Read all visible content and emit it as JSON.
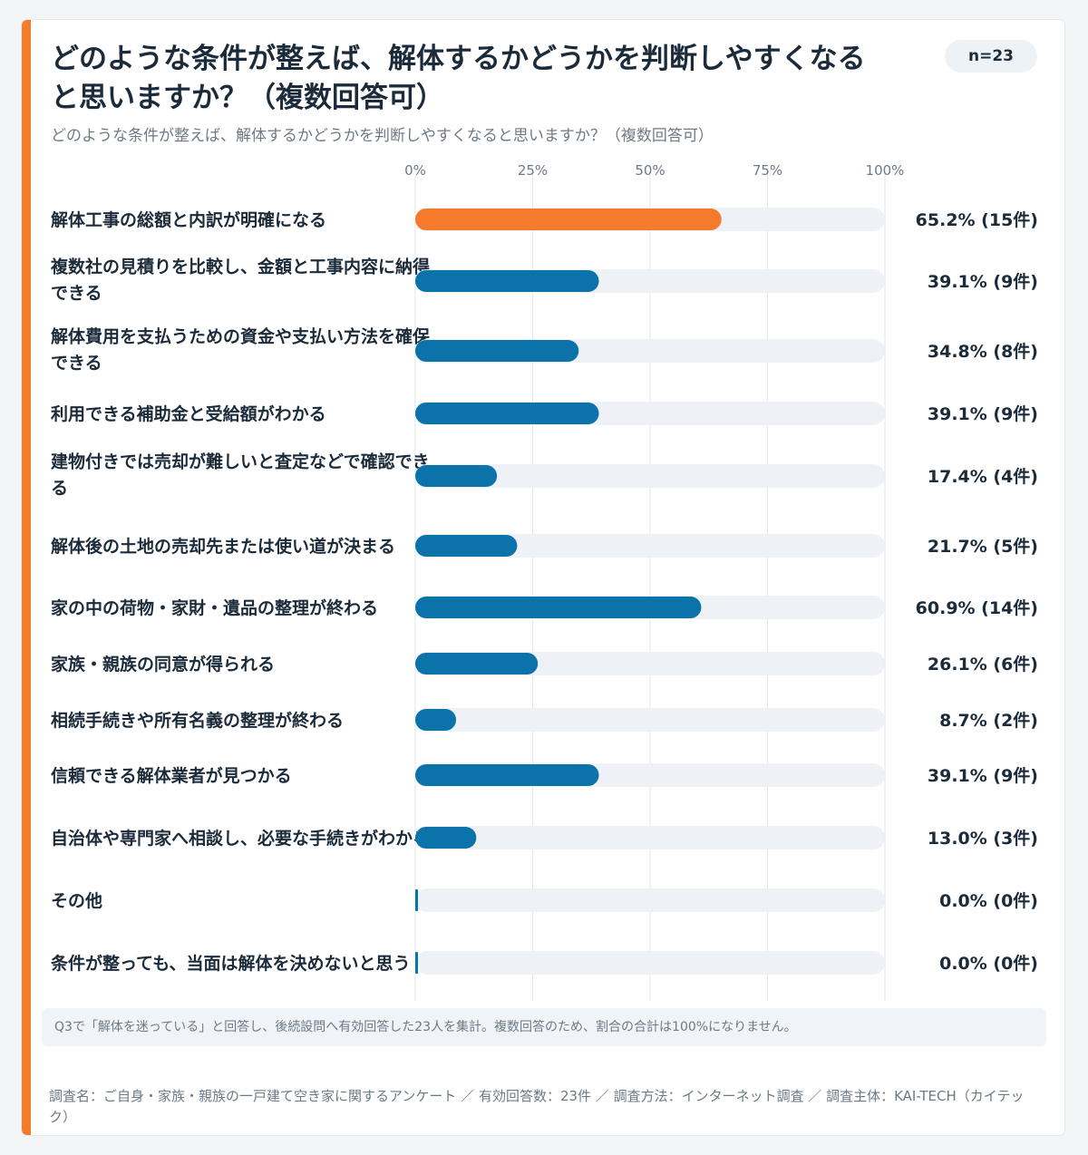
{
  "header": {
    "title": "どのような条件が整えば、解体するかどうかを判断しやすくなると思いますか？（複数回答可）",
    "subtitle": "どのような条件が整えば、解体するかどうかを判断しやすくなると思いますか？（複数回答可）",
    "n_badge": "n=23"
  },
  "chart_data": {
    "type": "bar",
    "orientation": "horizontal",
    "categories": [
      "解体工事の総額と内訳が明確になる",
      "複数社の見積りを比較し、金額と工事内容に納得できる",
      "解体費用を支払うための資金や支払い方法を確保できる",
      "利用できる補助金と受給額がわかる",
      "建物付きでは売却が難しいと査定などで確認できる",
      "解体後の土地の売却先または使い道が決まる",
      "家の中の荷物・家財・遺品の整理が終わる",
      "家族・親族の同意が得られる",
      "相続手続きや所有名義の整理が終わる",
      "信頼できる解体業者が見つかる",
      "自治体や専門家へ相談し、必要な手続きがわかる",
      "その他",
      "条件が整っても、当面は解体を決めないと思う"
    ],
    "values": [
      65.2,
      39.1,
      34.8,
      39.1,
      17.4,
      21.7,
      60.9,
      26.1,
      8.7,
      39.1,
      13.0,
      0.0,
      0.0
    ],
    "value_labels": [
      "65.2% (15件)",
      "39.1% (9件)",
      "34.8% (8件)",
      "39.1% (9件)",
      "17.4% (4件)",
      "21.7% (5件)",
      "60.9% (14件)",
      "26.1% (6件)",
      "8.7% (2件)",
      "39.1% (9件)",
      "13.0% (3件)",
      "0.0% (0件)",
      "0.0% (0件)"
    ],
    "counts": [
      15,
      9,
      8,
      9,
      4,
      5,
      14,
      6,
      2,
      9,
      3,
      0,
      0
    ],
    "highlight_index": 0,
    "xlim": [
      0,
      100
    ],
    "xticks": [
      0,
      25,
      50,
      75,
      100
    ],
    "xtick_labels": [
      "0%",
      "25%",
      "50%",
      "75%",
      "100%"
    ],
    "grid": true,
    "colors": {
      "highlight": "#f47b2b",
      "bar": "#0b72aa",
      "track": "#eef1f6",
      "grid": "#e3e6ea"
    }
  },
  "note": "Q3で「解体を迷っている」と回答し、後続設問へ有効回答した23人を集計。複数回答のため、割合の合計は100%になりません。",
  "footer": "調査名：ご自身・家族・親族の一戸建て空き家に関するアンケート ／ 有効回答数：23件 ／ 調査方法：インターネット調査 ／ 調査主体：KAI-TECH（カイテック）"
}
